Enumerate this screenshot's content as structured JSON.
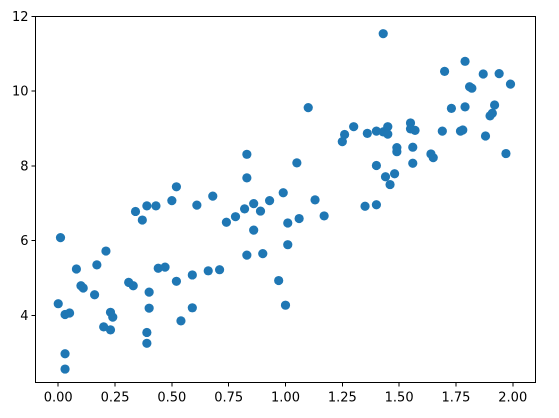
{
  "chart_data": {
    "type": "scatter",
    "title": "",
    "xlabel": "",
    "ylabel": "",
    "xlim": [
      -0.1,
      2.1
    ],
    "ylim": [
      2.2,
      12.0
    ],
    "grid": false,
    "marker_color": "#1f77b4",
    "x_ticks": [
      {
        "value": 0.0,
        "label": "0.00"
      },
      {
        "value": 0.25,
        "label": "0.25"
      },
      {
        "value": 0.5,
        "label": "0.50"
      },
      {
        "value": 0.75,
        "label": "0.75"
      },
      {
        "value": 1.0,
        "label": "1.00"
      },
      {
        "value": 1.25,
        "label": "1.25"
      },
      {
        "value": 1.5,
        "label": "1.50"
      },
      {
        "value": 1.75,
        "label": "1.75"
      },
      {
        "value": 2.0,
        "label": "2.00"
      }
    ],
    "y_ticks": [
      {
        "value": 4,
        "label": "4"
      },
      {
        "value": 6,
        "label": "6"
      },
      {
        "value": 8,
        "label": "8"
      },
      {
        "value": 10,
        "label": "10"
      },
      {
        "value": 12,
        "label": "12"
      }
    ],
    "series": [
      {
        "points": [
          [
            0.01,
            6.08
          ],
          [
            0.0,
            4.31
          ],
          [
            0.03,
            4.02
          ],
          [
            0.05,
            4.06
          ],
          [
            0.03,
            2.97
          ],
          [
            0.03,
            2.56
          ],
          [
            0.08,
            5.24
          ],
          [
            0.1,
            4.79
          ],
          [
            0.11,
            4.73
          ],
          [
            0.16,
            4.55
          ],
          [
            0.17,
            5.35
          ],
          [
            0.21,
            5.72
          ],
          [
            0.2,
            3.69
          ],
          [
            0.23,
            3.61
          ],
          [
            0.23,
            4.08
          ],
          [
            0.24,
            3.95
          ],
          [
            0.31,
            4.88
          ],
          [
            0.33,
            4.79
          ],
          [
            0.34,
            6.78
          ],
          [
            0.37,
            6.55
          ],
          [
            0.39,
            6.93
          ],
          [
            0.39,
            3.54
          ],
          [
            0.39,
            3.25
          ],
          [
            0.4,
            4.19
          ],
          [
            0.4,
            4.62
          ],
          [
            0.43,
            6.93
          ],
          [
            0.44,
            5.26
          ],
          [
            0.47,
            5.29
          ],
          [
            0.5,
            7.07
          ],
          [
            0.52,
            7.44
          ],
          [
            0.52,
            4.91
          ],
          [
            0.54,
            3.85
          ],
          [
            0.59,
            5.08
          ],
          [
            0.59,
            4.2
          ],
          [
            0.61,
            6.95
          ],
          [
            0.66,
            5.19
          ],
          [
            0.68,
            7.19
          ],
          [
            0.71,
            5.22
          ],
          [
            0.74,
            6.49
          ],
          [
            0.78,
            6.64
          ],
          [
            0.82,
            6.85
          ],
          [
            0.83,
            8.31
          ],
          [
            0.83,
            7.68
          ],
          [
            0.83,
            5.61
          ],
          [
            0.86,
            6.99
          ],
          [
            0.86,
            6.28
          ],
          [
            0.89,
            6.79
          ],
          [
            0.9,
            5.65
          ],
          [
            0.93,
            7.07
          ],
          [
            0.97,
            4.93
          ],
          [
            0.99,
            7.28
          ],
          [
            1.0,
            4.27
          ],
          [
            1.01,
            6.47
          ],
          [
            1.01,
            5.89
          ],
          [
            1.05,
            8.08
          ],
          [
            1.06,
            6.59
          ],
          [
            1.1,
            9.56
          ],
          [
            1.13,
            7.09
          ],
          [
            1.17,
            6.66
          ],
          [
            1.25,
            8.65
          ],
          [
            1.26,
            8.84
          ],
          [
            1.3,
            9.05
          ],
          [
            1.35,
            6.92
          ],
          [
            1.36,
            8.87
          ],
          [
            1.4,
            8.93
          ],
          [
            1.4,
            8.01
          ],
          [
            1.4,
            6.96
          ],
          [
            1.43,
            11.54
          ],
          [
            1.43,
            8.91
          ],
          [
            1.44,
            7.71
          ],
          [
            1.45,
            9.05
          ],
          [
            1.45,
            8.85
          ],
          [
            1.46,
            7.5
          ],
          [
            1.48,
            7.79
          ],
          [
            1.49,
            8.49
          ],
          [
            1.49,
            8.38
          ],
          [
            1.55,
            9.15
          ],
          [
            1.55,
            8.99
          ],
          [
            1.56,
            8.5
          ],
          [
            1.56,
            8.07
          ],
          [
            1.57,
            8.95
          ],
          [
            1.64,
            8.32
          ],
          [
            1.65,
            8.22
          ],
          [
            1.69,
            8.93
          ],
          [
            1.7,
            10.53
          ],
          [
            1.73,
            9.54
          ],
          [
            1.77,
            8.93
          ],
          [
            1.78,
            8.96
          ],
          [
            1.79,
            10.8
          ],
          [
            1.79,
            9.58
          ],
          [
            1.81,
            10.12
          ],
          [
            1.82,
            10.08
          ],
          [
            1.87,
            10.46
          ],
          [
            1.88,
            8.8
          ],
          [
            1.9,
            9.34
          ],
          [
            1.91,
            9.41
          ],
          [
            1.92,
            9.63
          ],
          [
            1.94,
            10.47
          ],
          [
            1.97,
            8.33
          ],
          [
            1.99,
            10.19
          ]
        ]
      }
    ]
  }
}
